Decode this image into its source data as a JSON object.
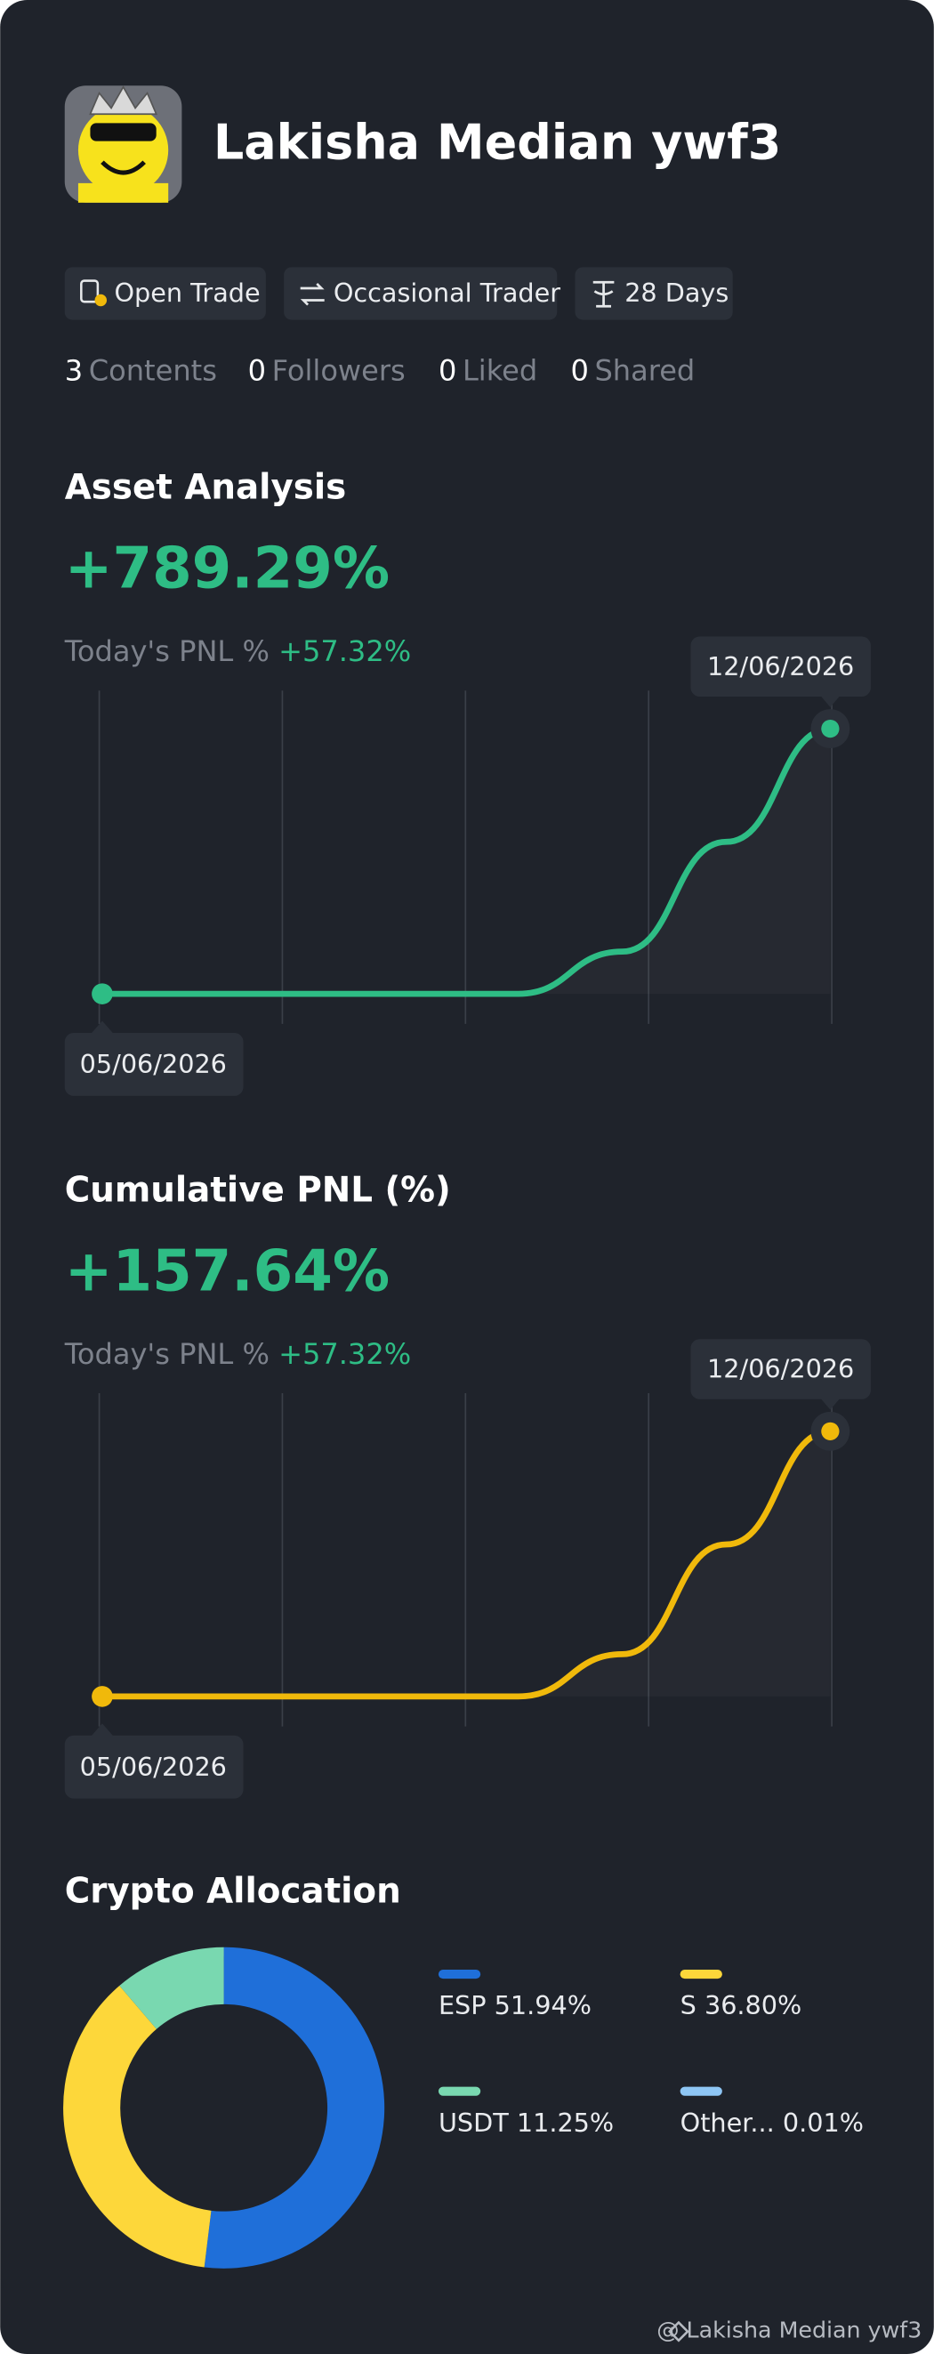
{
  "profile": {
    "name": "Lakisha Median ywf3",
    "badges": [
      "Open Trade",
      "Occasional Trader",
      "28 Days"
    ],
    "stats": [
      {
        "count": 3,
        "label": "Contents"
      },
      {
        "count": 0,
        "label": "Followers"
      },
      {
        "count": 0,
        "label": "Liked"
      },
      {
        "count": 0,
        "label": "Shared"
      }
    ]
  },
  "chart_data": [
    {
      "type": "line",
      "title": "Asset Analysis",
      "headline": "+789.29%",
      "today_label": "Today's PNL %",
      "today_value": "+57.32%",
      "categories": [
        "05/06/2026",
        null,
        null,
        null,
        null,
        null,
        null,
        "12/06/2026"
      ],
      "values": [
        0,
        0,
        0,
        0,
        0,
        25,
        90,
        157
      ],
      "color": "#2ebd85",
      "ylim": [
        0,
        160
      ]
    },
    {
      "type": "line",
      "title": "Cumulative PNL (%)",
      "headline": "+157.64%",
      "today_label": "Today's PNL %",
      "today_value": "+57.32%",
      "categories": [
        "05/06/2026",
        null,
        null,
        null,
        null,
        null,
        null,
        "12/06/2026"
      ],
      "values": [
        0,
        0,
        0,
        0,
        0,
        25,
        90,
        157
      ],
      "color": "#f0b90b",
      "ylim": [
        0,
        160
      ]
    },
    {
      "type": "pie",
      "title": "Crypto Allocation",
      "categories": [
        "ESP",
        "S",
        "USDT",
        "Other..."
      ],
      "values": [
        51.94,
        36.8,
        11.25,
        0.01
      ],
      "value_labels": [
        "51.94%",
        "36.80%",
        "11.25%",
        "0.01%"
      ],
      "colors": [
        "#1f6fd9",
        "#fdd73a",
        "#79d8b0",
        "#8ec6f5"
      ]
    }
  ],
  "footer": "@ Lakisha Median ywf3"
}
